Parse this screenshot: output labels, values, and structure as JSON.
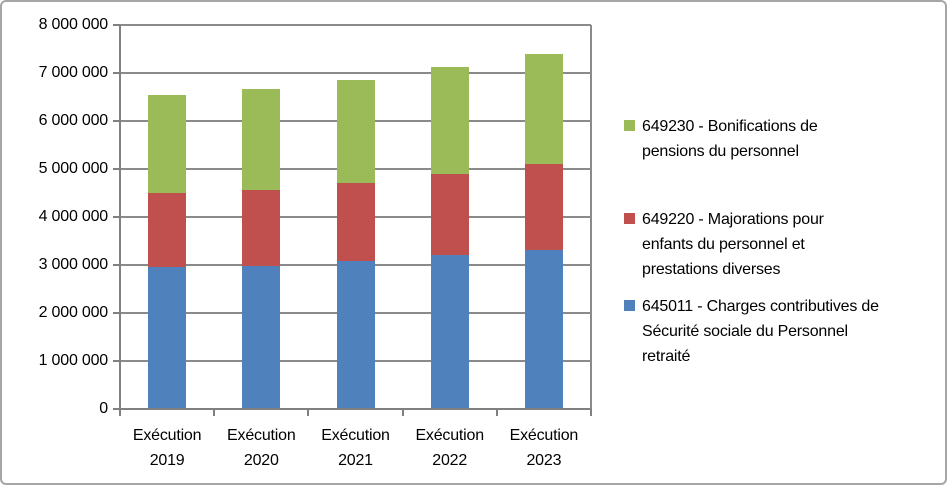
{
  "chart_data": {
    "type": "bar",
    "stacked": true,
    "title": "",
    "categories": [
      "Exécution 2019",
      "Exécution 2020",
      "Exécution 2021",
      "Exécution 2022",
      "Exécution 2023"
    ],
    "series": [
      {
        "name": "645011 - Charges contributives de Sécurité sociale du Personnel retraité",
        "color": "#4F81BD",
        "values": [
          2950000,
          2980000,
          3080000,
          3200000,
          3320000
        ]
      },
      {
        "name": "649220 - Majorations pour enfants du personnel et prestations diverses",
        "color": "#C0504D",
        "values": [
          1550000,
          1590000,
          1630000,
          1690000,
          1780000
        ]
      },
      {
        "name": "649230 - Bonifications de pensions du personnel",
        "color": "#9BBB59",
        "values": [
          2050000,
          2100000,
          2150000,
          2240000,
          2290000
        ]
      }
    ],
    "ylim": [
      0,
      8000000
    ],
    "ytick_step": 1000000,
    "yticks_labels": [
      "0",
      "1 000 000",
      "2 000 000",
      "3 000 000",
      "4 000 000",
      "5 000 000",
      "6 000 000",
      "7 000 000",
      "8 000 000"
    ],
    "grid": "horizontal",
    "legend_position": "right",
    "legend": [
      {
        "code": "649230",
        "color": "#9BBB59",
        "lines": [
          "649230 - Bonifications de",
          "pensions du personnel"
        ]
      },
      {
        "code": "649220",
        "color": "#C0504D",
        "lines": [
          "649220 - Majorations pour",
          "enfants du personnel et",
          "prestations diverses"
        ]
      },
      {
        "code": "645011",
        "color": "#4F81BD",
        "lines": [
          "645011 - Charges contributives de",
          "Sécurité sociale du Personnel",
          "retraité"
        ]
      }
    ]
  },
  "colors": {
    "gridline": "#8a8a8a",
    "axis": "#808080",
    "text": "#000000",
    "frame_border": "#a6a6a6",
    "background": "#ffffff"
  }
}
